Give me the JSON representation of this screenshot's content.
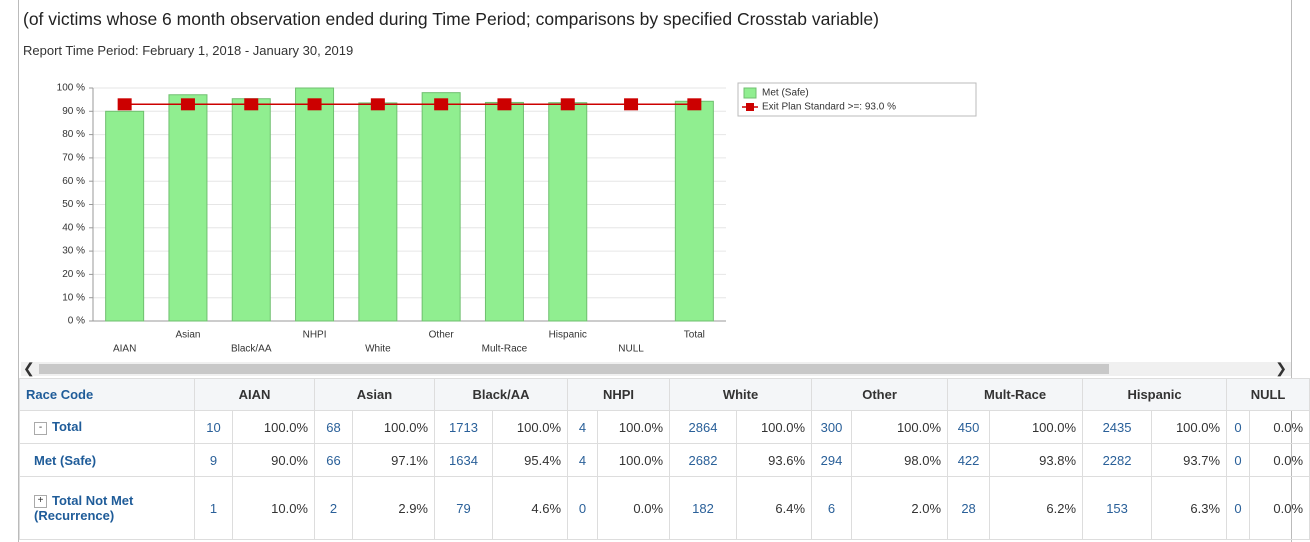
{
  "header": {
    "title": "(of victims whose 6 month observation ended during Time Period; comparisons by specified Crosstab variable)",
    "subtitle": "Report Time Period: February 1, 2018 - January 30, 2019"
  },
  "chart_data": {
    "type": "bar",
    "categories": [
      "AIAN",
      "Asian",
      "Black/AA",
      "NHPI",
      "White",
      "Other",
      "Mult-Race",
      "Hispanic",
      "NULL",
      "Total"
    ],
    "series": [
      {
        "name": "Met (Safe)",
        "color": "#90ee90",
        "values": [
          90.0,
          97.1,
          95.4,
          100,
          93.6,
          98.0,
          93.8,
          93.7,
          0,
          94.3
        ]
      },
      {
        "name": "Exit Plan Standard >=: 93.0 %",
        "color": "#cc0000",
        "type": "line",
        "values": [
          93,
          93,
          93,
          93,
          93,
          93,
          93,
          93,
          93,
          93
        ]
      }
    ],
    "ylim": [
      0,
      100
    ],
    "yticks": [
      {
        "value": 0,
        "label": "0 %"
      },
      {
        "value": 10,
        "label": "10 %"
      },
      {
        "value": 20,
        "label": "20 %"
      },
      {
        "value": 30,
        "label": "30 %"
      },
      {
        "value": 40,
        "label": "40 %"
      },
      {
        "value": 50,
        "label": "50 %"
      },
      {
        "value": 60,
        "label": "60 %"
      },
      {
        "value": 70,
        "label": "70 %"
      },
      {
        "value": 80,
        "label": "80 %"
      },
      {
        "value": 90,
        "label": "90 %"
      },
      {
        "value": 100,
        "label": "100 %"
      }
    ],
    "grid": true,
    "legend": "right"
  },
  "table": {
    "header": [
      "Race Code",
      "AIAN",
      "Asian",
      "Black/AA",
      "NHPI",
      "White",
      "Other",
      "Mult-Race",
      "Hispanic",
      "NULL"
    ],
    "rows": [
      {
        "toggle": "-",
        "label": "Total",
        "cells": [
          10,
          "100.0%",
          68,
          "100.0%",
          1713,
          "100.0%",
          4,
          "100.0%",
          2864,
          "100.0%",
          300,
          "100.0%",
          450,
          "100.0%",
          2435,
          "100.0%",
          0,
          "0.0%"
        ]
      },
      {
        "label": "Met (Safe)",
        "cells": [
          9,
          "90.0%",
          66,
          "97.1%",
          1634,
          "95.4%",
          4,
          "100.0%",
          2682,
          "93.6%",
          294,
          "98.0%",
          422,
          "93.8%",
          2282,
          "93.7%",
          0,
          "0.0%"
        ]
      },
      {
        "toggle": "+",
        "label": "Total Not Met (Recurrence)",
        "cells": [
          1,
          "10.0%",
          2,
          "2.9%",
          79,
          "4.6%",
          0,
          "0.0%",
          182,
          "6.4%",
          6,
          "2.0%",
          28,
          "6.2%",
          153,
          "6.3%",
          0,
          "0.0%"
        ]
      }
    ]
  }
}
